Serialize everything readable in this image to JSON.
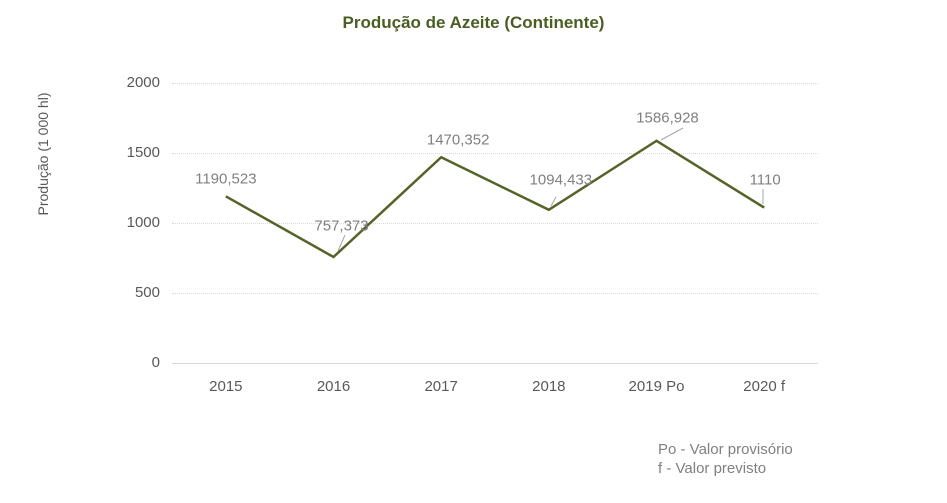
{
  "chart": {
    "title": "Produção de Azeite (Continente)",
    "ylabel": "Produção (1 000 hl)",
    "footnotes": [
      "Po - Valor provisório",
      "f - Valor previsto"
    ]
  },
  "chart_data": {
    "type": "line",
    "title": "Produção de Azeite (Continente)",
    "xlabel": "",
    "ylabel": "Produção (1 000 hl)",
    "categories": [
      "2015",
      "2016",
      "2017",
      "2018",
      "2019 Po",
      "2020 f"
    ],
    "series": [
      {
        "name": "Produção de Azeite",
        "values": [
          1190.523,
          757.373,
          1470.352,
          1094.433,
          1586.928,
          1110
        ],
        "data_labels": [
          "1190,523",
          "757,373",
          "1470,352",
          "1094,433",
          "1586,928",
          "1110"
        ]
      }
    ],
    "yticks": [
      0,
      500,
      1000,
      1500,
      2000
    ],
    "ylim": [
      0,
      2000
    ],
    "grid": "horizontal-dotted",
    "legend": "none",
    "colors": {
      "line": "#556329",
      "title": "#4a5e22",
      "axis_text": "#595959",
      "data_label_text": "#808080",
      "gridline": "#d9d9d9",
      "axis_line": "#d9d9d9",
      "leader_line": "#a6a6a6",
      "footnote_text": "#808080",
      "background": "#ffffff"
    }
  }
}
